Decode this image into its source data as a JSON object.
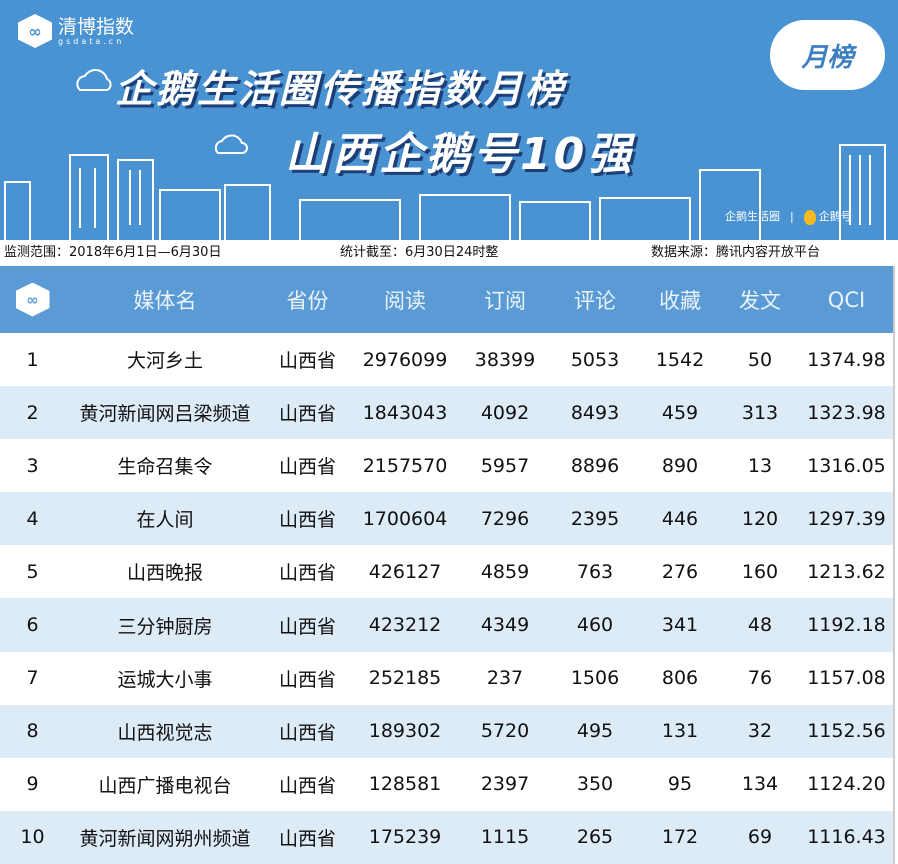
{
  "banner": {
    "brand": "清博指数",
    "brand_sub": "gsdata.cn",
    "title1": "企鹅生活圈传播指数月榜",
    "title2": "山西企鹅号10强",
    "badge": "月榜",
    "partner1": "企鹅生活圈",
    "partner2": "企鹅号"
  },
  "info": {
    "range": "监测范围：2018年6月1日—6月30日",
    "cutoff": "统计截至：6月30日24时整",
    "source": "数据来源：腾讯内容开放平台"
  },
  "table": {
    "headers": [
      "媒体名",
      "省份",
      "阅读",
      "订阅",
      "评论",
      "收藏",
      "发文",
      "QCI"
    ],
    "rows": [
      [
        "1",
        "大河乡土",
        "山西省",
        "2976099",
        "38399",
        "5053",
        "1542",
        "50",
        "1374.98"
      ],
      [
        "2",
        "黄河新闻网吕梁频道",
        "山西省",
        "1843043",
        "4092",
        "8493",
        "459",
        "313",
        "1323.98"
      ],
      [
        "3",
        "生命召集令",
        "山西省",
        "2157570",
        "5957",
        "8896",
        "890",
        "13",
        "1316.05"
      ],
      [
        "4",
        "在人间",
        "山西省",
        "1700604",
        "7296",
        "2395",
        "446",
        "120",
        "1297.39"
      ],
      [
        "5",
        "山西晚报",
        "山西省",
        "426127",
        "4859",
        "763",
        "276",
        "160",
        "1213.62"
      ],
      [
        "6",
        "三分钟厨房",
        "山西省",
        "423212",
        "4349",
        "460",
        "341",
        "48",
        "1192.18"
      ],
      [
        "7",
        "运城大小事",
        "山西省",
        "252185",
        "237",
        "1506",
        "806",
        "76",
        "1157.08"
      ],
      [
        "8",
        "山西视觉志",
        "山西省",
        "189302",
        "5720",
        "495",
        "131",
        "32",
        "1152.56"
      ],
      [
        "9",
        "山西广播电视台",
        "山西省",
        "128581",
        "2397",
        "350",
        "95",
        "134",
        "1124.20"
      ],
      [
        "10",
        "黄河新闻网朔州频道",
        "山西省",
        "175239",
        "1115",
        "265",
        "172",
        "69",
        "1116.43"
      ]
    ]
  }
}
